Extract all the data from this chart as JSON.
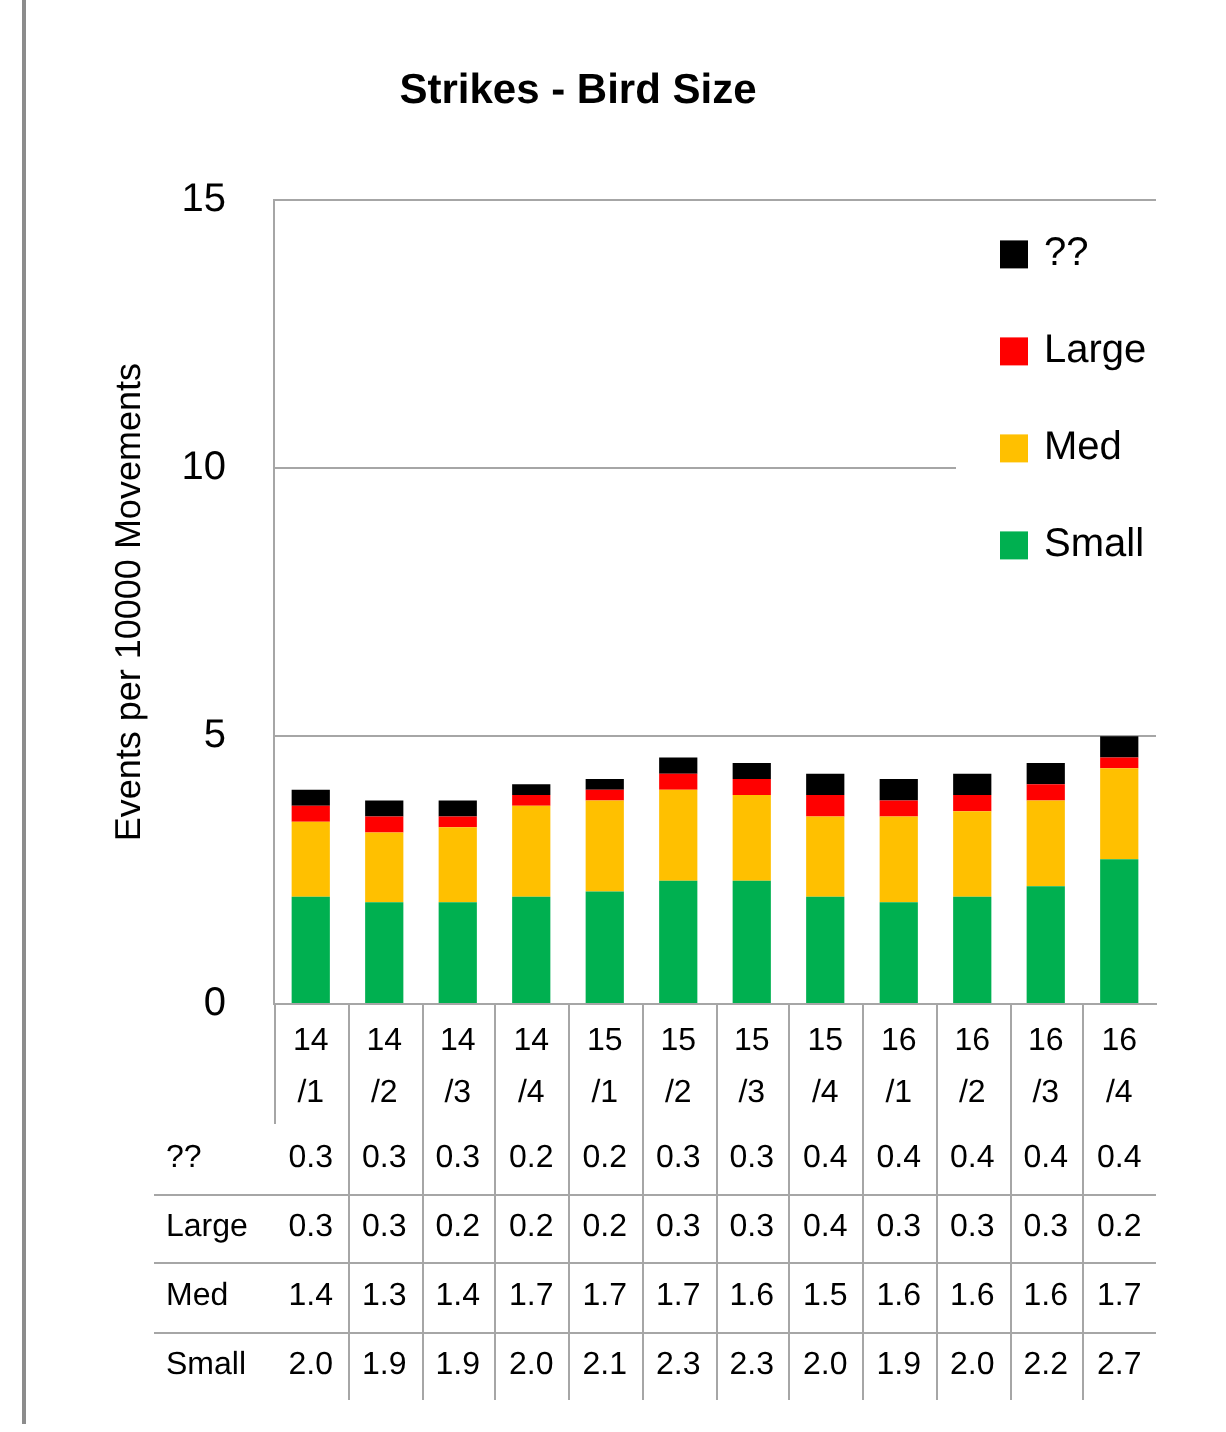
{
  "chart_data": {
    "type": "bar",
    "title": "Strikes - Bird Size",
    "ylabel": "Events per 10000 Movements",
    "categories": [
      "14/1",
      "14/2",
      "14/3",
      "14/4",
      "15/1",
      "15/2",
      "15/3",
      "15/4",
      "16/1",
      "16/2",
      "16/3",
      "16/4"
    ],
    "series": [
      {
        "name": "Small",
        "color": "#00b050",
        "values": [
          2.0,
          1.9,
          1.9,
          2.0,
          2.1,
          2.3,
          2.3,
          2.0,
          1.9,
          2.0,
          2.2,
          2.7
        ],
        "value_labels": [
          "2.0",
          "1.9",
          "1.9",
          "2.0",
          "2.1",
          "2.3",
          "2.3",
          "2.0",
          "1.9",
          "2.0",
          "2.2",
          "2.7"
        ]
      },
      {
        "name": "Med",
        "color": "#ffc000",
        "values": [
          1.4,
          1.3,
          1.4,
          1.7,
          1.7,
          1.7,
          1.6,
          1.5,
          1.6,
          1.6,
          1.6,
          1.7
        ],
        "value_labels": [
          "1.4",
          "1.3",
          "1.4",
          "1.7",
          "1.7",
          "1.7",
          "1.6",
          "1.5",
          "1.6",
          "1.6",
          "1.6",
          "1.7"
        ]
      },
      {
        "name": "Large",
        "color": "#ff0000",
        "values": [
          0.3,
          0.3,
          0.2,
          0.2,
          0.2,
          0.3,
          0.3,
          0.4,
          0.3,
          0.3,
          0.3,
          0.2
        ],
        "value_labels": [
          "0.3",
          "0.3",
          "0.2",
          "0.2",
          "0.2",
          "0.3",
          "0.3",
          "0.4",
          "0.3",
          "0.3",
          "0.3",
          "0.2"
        ]
      },
      {
        "name": "??",
        "color": "#000000",
        "values": [
          0.3,
          0.3,
          0.3,
          0.2,
          0.2,
          0.3,
          0.3,
          0.4,
          0.4,
          0.4,
          0.4,
          0.4
        ],
        "value_labels": [
          "0.3",
          "0.3",
          "0.3",
          "0.2",
          "0.2",
          "0.3",
          "0.3",
          "0.4",
          "0.4",
          "0.4",
          "0.4",
          "0.4"
        ]
      }
    ],
    "stacked": true,
    "ylim": [
      0,
      15
    ],
    "yticks": [
      0,
      5,
      10,
      15
    ],
    "grid": "y",
    "legend": "top right"
  }
}
